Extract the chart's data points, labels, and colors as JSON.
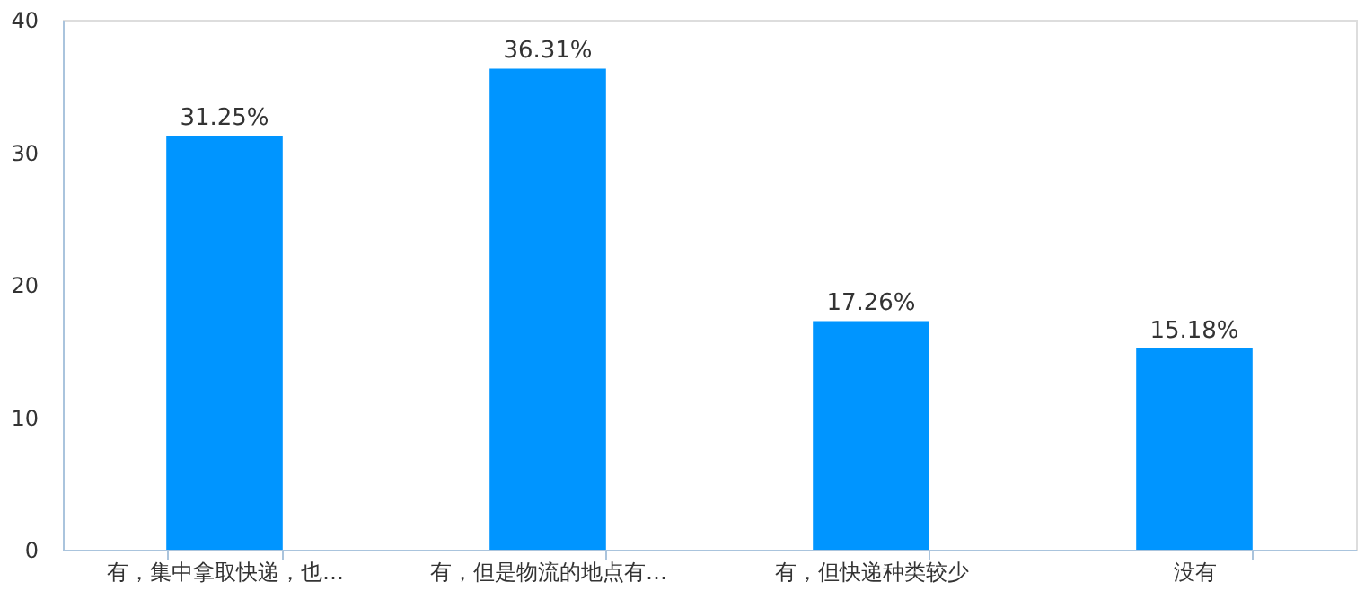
{
  "chart_data": {
    "type": "bar",
    "categories": [
      "有，集中拿取快递，也…",
      "有，但是物流的地点有…",
      "有，但快递种类较少",
      "没有"
    ],
    "values": [
      31.25,
      36.31,
      17.26,
      15.18
    ],
    "value_labels": [
      "31.25%",
      "36.31%",
      "17.26%",
      "15.18%"
    ],
    "color": "#0095ff",
    "ylim": [
      0,
      40
    ],
    "yticks": [
      0,
      10,
      20,
      30,
      40
    ],
    "grid": false
  }
}
